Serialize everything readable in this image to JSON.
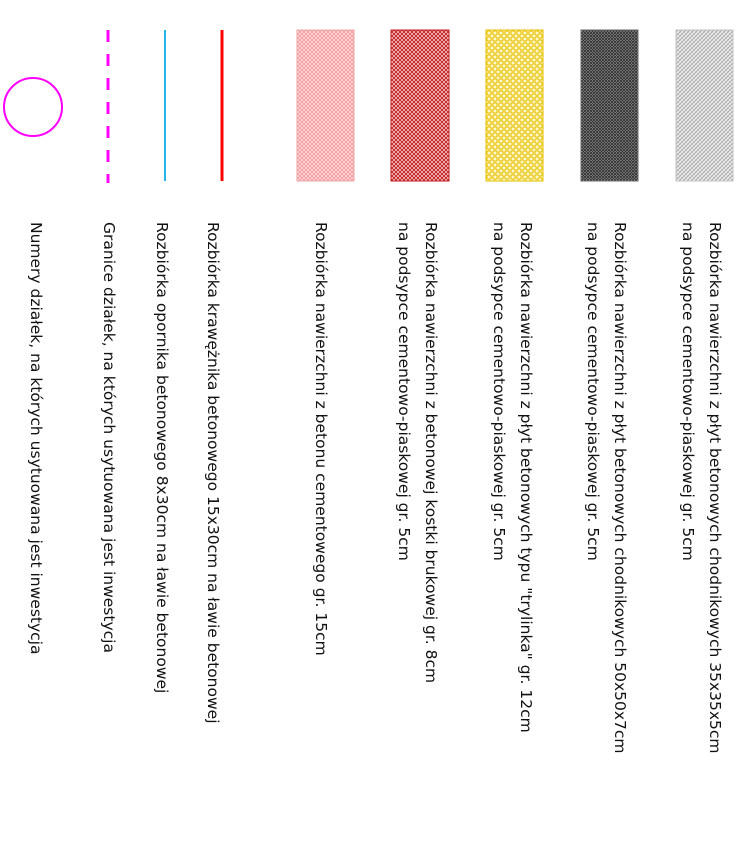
{
  "legend": {
    "items": [
      {
        "id": "plyty-35",
        "symbol": "hatch-light-gray",
        "color": "#9c9c9c",
        "lines": [
          "Rozbiórka nawierzchni z płyt betonowych chodnikowych 35x35x5cm",
          "na podsypce cementowo-piaskowej gr. 5cm"
        ]
      },
      {
        "id": "plyty-50",
        "symbol": "hatch-dark-gray",
        "color": "#3a3a3a",
        "lines": [
          "Rozbiórka nawierzchni z płyt betonowych chodnikowych 50x50x7cm",
          "na podsypce cementowo-piaskowej gr. 5cm"
        ]
      },
      {
        "id": "trylinka",
        "symbol": "hatch-yellow-hex",
        "color": "#e6c200",
        "lines": [
          "Rozbiórka nawierzchni z płyt betonowych typu \"trylinka\" gr. 12cm",
          "na podsypce cementowo-piaskowej gr. 5cm"
        ]
      },
      {
        "id": "kostka",
        "symbol": "hatch-red-crosshatch",
        "color": "#c01818",
        "lines": [
          "Rozbiórka nawierzchni z betonowej kostki brukowej gr. 8cm",
          "na podsypce cementowo-piaskowej gr. 5cm"
        ]
      },
      {
        "id": "beton",
        "symbol": "hatch-pink",
        "color": "#ef7f84",
        "lines": [
          "Rozbiórka nawierzchni z betonu cementowego gr. 15cm"
        ]
      },
      {
        "id": "kraweznik",
        "symbol": "line-red",
        "color": "#ff0000",
        "lines": [
          "Rozbiórka krawężnika betonowego 15x30cm na ławie betonowej"
        ]
      },
      {
        "id": "opornik",
        "symbol": "line-cyan",
        "color": "#22b5e8",
        "lines": [
          "Rozbiórka opornika betonowego 8x30cm na ławie betonowej"
        ]
      },
      {
        "id": "granice",
        "symbol": "line-magenta-dashed",
        "color": "#ff00ff",
        "lines": [
          "Granice działek, na których usytuowana jest inwestycja"
        ]
      },
      {
        "id": "numery",
        "symbol": "circle-magenta",
        "color": "#ff00ff",
        "lines": [
          "Numery działek, na których usytuowana jest inwestycja"
        ]
      }
    ]
  }
}
